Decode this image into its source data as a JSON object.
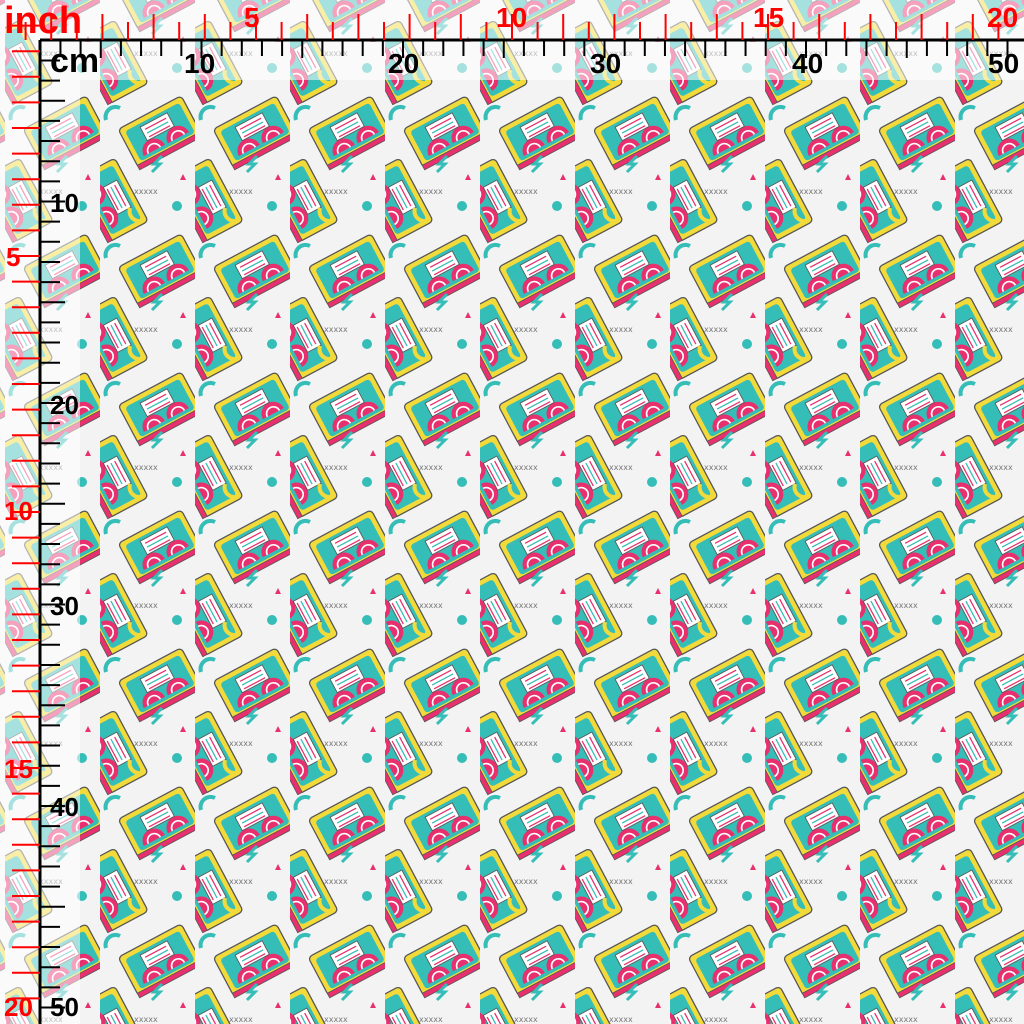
{
  "rulers": {
    "inch_unit": "inch",
    "cm_unit": "cm",
    "top_inch_labels": [
      "5",
      "10",
      "15",
      "20"
    ],
    "top_cm_labels": [
      "10",
      "20",
      "30",
      "40",
      "50"
    ],
    "left_inch_labels": [
      "5",
      "10",
      "15",
      "20"
    ],
    "left_cm_labels": [
      "10",
      "20",
      "30",
      "40",
      "50"
    ],
    "inch_color": "#ff0000",
    "cm_color": "#000000"
  },
  "fabric": {
    "motif": "retro VHS cassette tapes",
    "colors": {
      "pink": "#e8306e",
      "teal": "#35bdb8",
      "yellow": "#f2da3a",
      "background": "#f3f3f3",
      "outline": "#555555"
    }
  }
}
